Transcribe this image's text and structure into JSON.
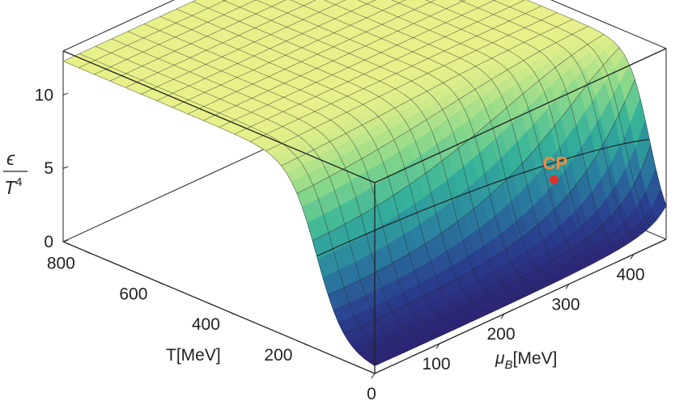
{
  "chart_data": {
    "type": "surface",
    "zlabel_numerator": "ϵ",
    "zlabel_denominator": "T",
    "zlabel_denominator_power": "4",
    "xlabel": "T[MeV]",
    "ylabel_symbol": "μ",
    "ylabel_subscript": "B",
    "ylabel_unit": "[MeV]",
    "T_range": [
      0,
      860
    ],
    "muB_range": [
      0,
      450
    ],
    "z_range": [
      0,
      13
    ],
    "T_ticks": [
      "800",
      "600",
      "400",
      "200"
    ],
    "muB_ticks": [
      "0",
      "100",
      "200",
      "300",
      "400"
    ],
    "z_ticks": [
      "0",
      "5",
      "10"
    ],
    "surface_high_T_value": 12.3,
    "transition_T_at_muB0": 160,
    "critical_point": {
      "label": "CP",
      "T": 95,
      "muB": 330,
      "z": 5.5,
      "color": "#e0302a"
    },
    "colormap": [
      "#2d1e6e",
      "#2a3f8f",
      "#2a7fa0",
      "#35b29a",
      "#8ad88a",
      "#e8f08a"
    ],
    "grid": true
  }
}
